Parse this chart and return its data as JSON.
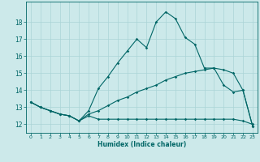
{
  "xlabel": "Humidex (Indice chaleur)",
  "ylabel": "",
  "background_color": "#cce9ea",
  "grid_color": "#aad4d6",
  "line_color": "#006666",
  "xlim": [
    -0.5,
    23.5
  ],
  "ylim": [
    11.5,
    19.2
  ],
  "yticks": [
    12,
    13,
    14,
    15,
    16,
    17,
    18
  ],
  "xticks": [
    0,
    1,
    2,
    3,
    4,
    5,
    6,
    7,
    8,
    9,
    10,
    11,
    12,
    13,
    14,
    15,
    16,
    17,
    18,
    19,
    20,
    21,
    22,
    23
  ],
  "series1": [
    [
      0,
      13.3
    ],
    [
      1,
      13.0
    ],
    [
      2,
      12.8
    ],
    [
      3,
      12.6
    ],
    [
      4,
      12.5
    ],
    [
      5,
      12.2
    ],
    [
      6,
      12.8
    ],
    [
      7,
      14.1
    ],
    [
      8,
      14.8
    ],
    [
      9,
      15.6
    ],
    [
      10,
      16.3
    ],
    [
      11,
      17.0
    ],
    [
      12,
      16.5
    ],
    [
      13,
      18.0
    ],
    [
      14,
      18.6
    ],
    [
      15,
      18.2
    ],
    [
      16,
      17.1
    ],
    [
      17,
      16.7
    ],
    [
      18,
      15.3
    ],
    [
      19,
      15.3
    ],
    [
      20,
      14.3
    ],
    [
      21,
      13.9
    ],
    [
      22,
      14.0
    ],
    [
      23,
      11.9
    ]
  ],
  "series2": [
    [
      0,
      13.3
    ],
    [
      1,
      13.0
    ],
    [
      2,
      12.8
    ],
    [
      3,
      12.6
    ],
    [
      4,
      12.5
    ],
    [
      5,
      12.2
    ],
    [
      6,
      12.5
    ],
    [
      7,
      12.3
    ],
    [
      8,
      12.3
    ],
    [
      9,
      12.3
    ],
    [
      10,
      12.3
    ],
    [
      11,
      12.3
    ],
    [
      12,
      12.3
    ],
    [
      13,
      12.3
    ],
    [
      14,
      12.3
    ],
    [
      15,
      12.3
    ],
    [
      16,
      12.3
    ],
    [
      17,
      12.3
    ],
    [
      18,
      12.3
    ],
    [
      19,
      12.3
    ],
    [
      20,
      12.3
    ],
    [
      21,
      12.3
    ],
    [
      22,
      12.2
    ],
    [
      23,
      12.0
    ]
  ],
  "series3": [
    [
      0,
      13.3
    ],
    [
      1,
      13.0
    ],
    [
      2,
      12.8
    ],
    [
      3,
      12.6
    ],
    [
      4,
      12.5
    ],
    [
      5,
      12.2
    ],
    [
      6,
      12.6
    ],
    [
      7,
      12.8
    ],
    [
      8,
      13.1
    ],
    [
      9,
      13.4
    ],
    [
      10,
      13.6
    ],
    [
      11,
      13.9
    ],
    [
      12,
      14.1
    ],
    [
      13,
      14.3
    ],
    [
      14,
      14.6
    ],
    [
      15,
      14.8
    ],
    [
      16,
      15.0
    ],
    [
      17,
      15.1
    ],
    [
      18,
      15.2
    ],
    [
      19,
      15.3
    ],
    [
      20,
      15.2
    ],
    [
      21,
      15.0
    ],
    [
      22,
      14.0
    ],
    [
      23,
      11.9
    ]
  ]
}
